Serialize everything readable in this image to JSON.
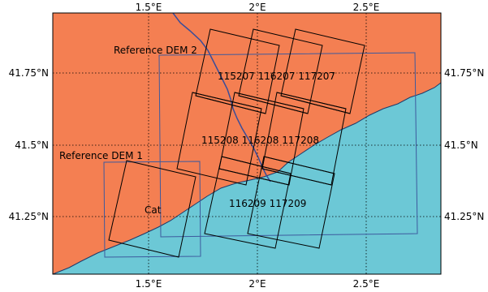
{
  "colors": {
    "land": "#f47f52",
    "sea": "#6cc8d6",
    "river": "#3a4d9a",
    "coastline": "#1e3a6a",
    "dem_outline": "#3d5a9e",
    "footprint": "#000000",
    "graticule": "#000000"
  },
  "map": {
    "lon_range": [
      1.03,
      2.79
    ],
    "lat_range": [
      41.04,
      41.95
    ],
    "graticule_dotted": true
  },
  "axes": {
    "lon_ticks": [
      "1.5°E",
      "2°E",
      "2.5°E"
    ],
    "lat_ticks": [
      "41.75°N",
      "41.5°N",
      "41.25°N"
    ]
  },
  "labels": {
    "reference_dem_1": "Reference DEM 1",
    "reference_dem_2": "Reference DEM 2",
    "cat": "Cat",
    "row_207": "115207 116207 117207",
    "row_208": "115208 116208 117208",
    "row_209": "116209 117209"
  }
}
